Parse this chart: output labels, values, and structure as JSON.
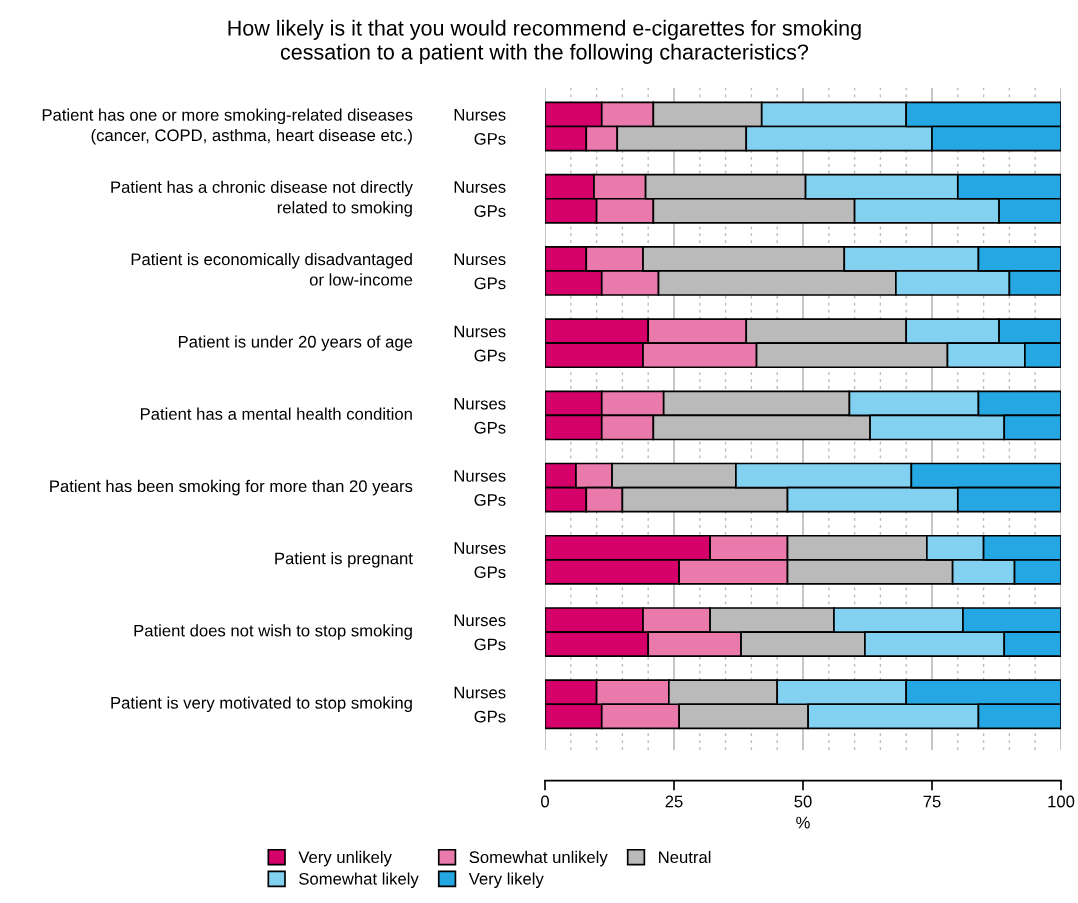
{
  "chart_data": {
    "type": "bar",
    "orientation": "horizontal",
    "stacked": true,
    "title": "How likely is it that you would recommend e-cigarettes for smoking\ncessation to a patient with the following characteristics?",
    "xlabel": "%",
    "categories": [
      "Nurses",
      "GPs",
      "Nurses",
      "GPs",
      "Nurses",
      "GPs",
      "Nurses",
      "GPs",
      "Nurses",
      "GPs",
      "Nurses",
      "GPs",
      "Nurses",
      "GPs",
      "Nurses",
      "GPs",
      "Nurses",
      "GPs"
    ],
    "series": [
      {
        "name": "Very unlikely",
        "color": "#d6006a",
        "values": [
          11,
          8,
          9.5,
          10,
          8,
          11,
          20,
          19,
          11,
          11,
          6,
          8,
          32,
          26,
          19,
          20,
          10,
          11
        ]
      },
      {
        "name": "Somewhat unlikely",
        "color": "#ea7aab",
        "values": [
          10,
          6,
          10,
          11,
          11,
          11,
          19,
          22,
          12,
          10,
          7,
          7,
          15,
          21,
          13,
          18,
          14,
          15
        ]
      },
      {
        "name": "Neutral",
        "color": "#bababa",
        "values": [
          21,
          25,
          31,
          39,
          39,
          46,
          31,
          37,
          36,
          42,
          24,
          32,
          27,
          32,
          24,
          24,
          21,
          25
        ]
      },
      {
        "name": "Somewhat likely",
        "color": "#83d1f0",
        "values": [
          28,
          36,
          29.5,
          28,
          26,
          22,
          18,
          15,
          25,
          26,
          34,
          33,
          11,
          12,
          25,
          27,
          25,
          33
        ]
      },
      {
        "name": "Very likely",
        "color": "#25a7e3",
        "values": [
          30,
          25,
          20,
          12,
          16,
          10,
          12,
          7,
          16,
          11,
          29,
          20,
          15,
          9,
          19,
          11,
          30,
          16
        ]
      }
    ],
    "xlim": [
      0,
      100
    ],
    "xticks": [
      0,
      25,
      50,
      75,
      100
    ],
    "grid": "x",
    "legend": "bottom",
    "annotations": [
      "Patient has one or more smoking-related diseases\n(cancer, COPD, asthma, heart disease etc.)",
      "Patient has a chronic disease not directly\nrelated to smoking",
      "Patient is economically disadvantaged\nor low-income",
      "Patient is under 20 years of age",
      "Patient has a mental health condition",
      "Patient has been smoking for more than 20 years",
      "Patient is pregnant",
      "Patient does not wish to stop smoking",
      "Patient is very motivated to stop smoking"
    ]
  }
}
